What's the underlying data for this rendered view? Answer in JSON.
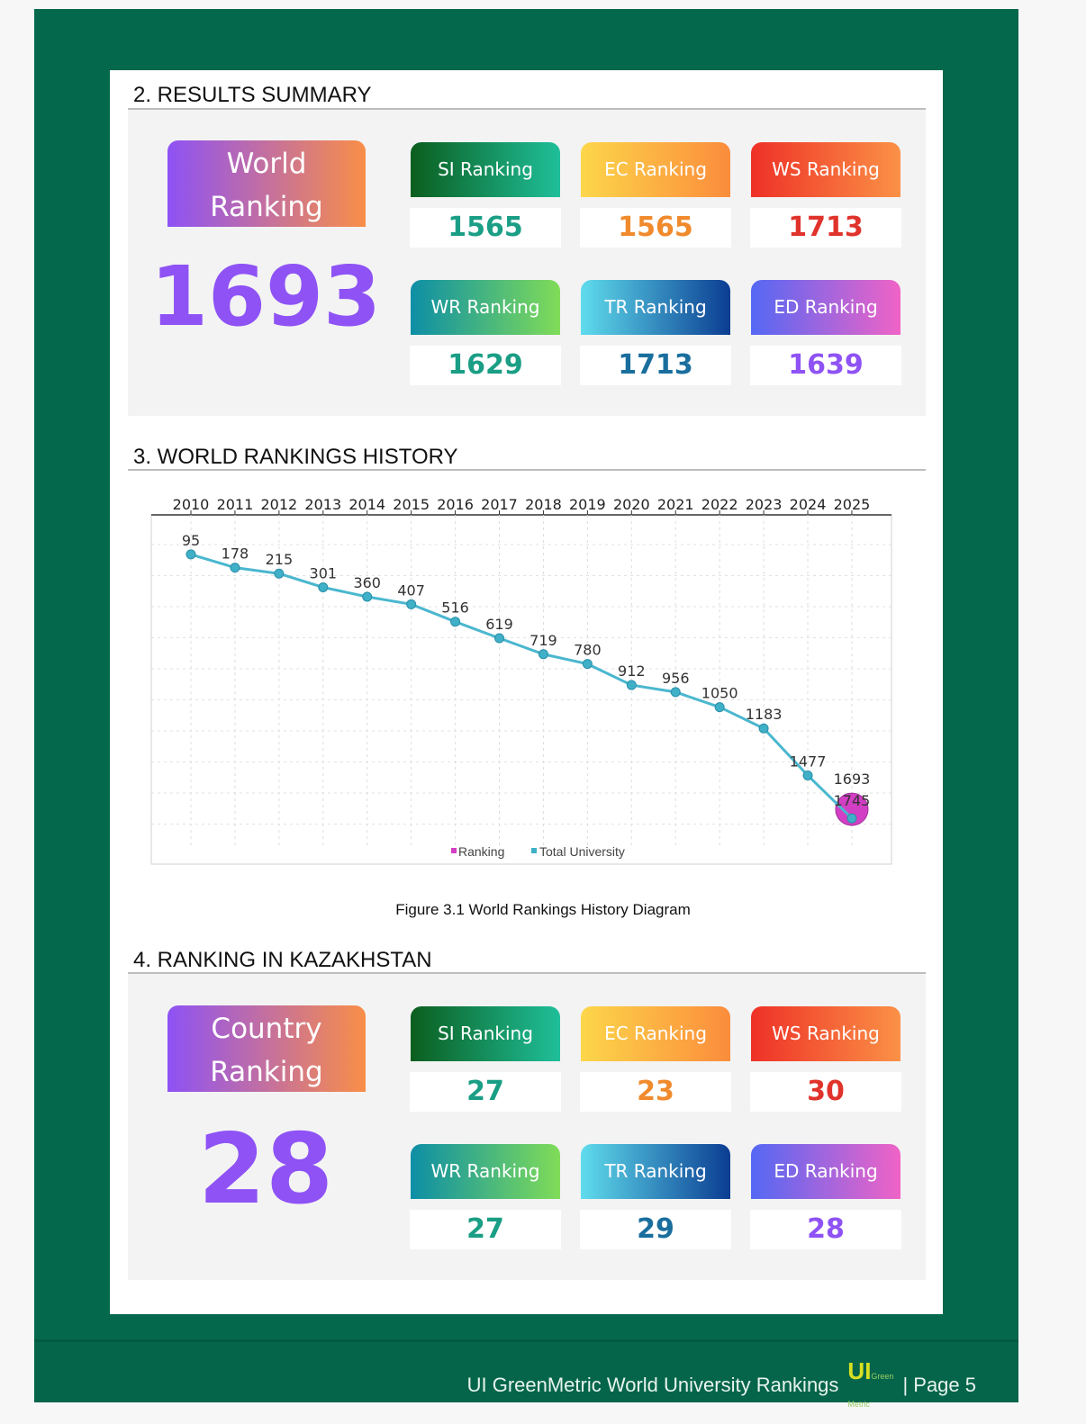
{
  "results": {
    "title": "2. RESULTS SUMMARY",
    "main_label": "World Ranking",
    "main_value": "1693",
    "cards": [
      {
        "label": "SI Ranking",
        "value": "1565"
      },
      {
        "label": "EC Ranking",
        "value": "1565"
      },
      {
        "label": "WS Ranking",
        "value": "1713"
      },
      {
        "label": "WR Ranking",
        "value": "1629"
      },
      {
        "label": "TR Ranking",
        "value": "1713"
      },
      {
        "label": "ED Ranking",
        "value": "1639"
      }
    ]
  },
  "history": {
    "title": "3. WORLD RANKINGS HISTORY",
    "caption": "Figure 3.1 World Rankings History Diagram"
  },
  "country": {
    "title": "4. RANKING IN KAZAKHSTAN",
    "main_label": "Country Ranking",
    "main_value": "28",
    "cards": [
      {
        "label": "SI Ranking",
        "value": "27"
      },
      {
        "label": "EC Ranking",
        "value": "23"
      },
      {
        "label": "WS Ranking",
        "value": "30"
      },
      {
        "label": "WR Ranking",
        "value": "27"
      },
      {
        "label": "TR Ranking",
        "value": "29"
      },
      {
        "label": "ED Ranking",
        "value": "28"
      }
    ]
  },
  "footer": {
    "text": "UI GreenMetric World University Rankings",
    "logo": "UI GreenMetric",
    "page": "| Page 5"
  },
  "colors": {
    "green": "#04684c",
    "purple": "#8e52f5",
    "teal": "#1a9e85",
    "orange": "#f08a2c",
    "red": "#e0332b",
    "blue": "#1a6e9e",
    "line": "#4ab7cf",
    "pink": "#d23fc4"
  },
  "chart_data": {
    "type": "line",
    "x": [
      2010,
      2011,
      2012,
      2013,
      2014,
      2015,
      2016,
      2017,
      2018,
      2019,
      2020,
      2021,
      2022,
      2023,
      2024,
      2025
    ],
    "series": [
      {
        "name": "Ranking",
        "values": [
          95,
          178,
          215,
          301,
          360,
          407,
          516,
          619,
          719,
          780,
          912,
          956,
          1050,
          1183,
          1477,
          1693
        ]
      },
      {
        "name": "Total University",
        "values": [
          null,
          null,
          null,
          null,
          null,
          null,
          null,
          null,
          null,
          null,
          null,
          null,
          null,
          null,
          null,
          1745
        ]
      }
    ],
    "legend": [
      "Ranking",
      "Total University"
    ],
    "legend_position": "bottom",
    "ylim": [
      0,
      1920
    ],
    "y_inverted": true,
    "grid": true
  }
}
